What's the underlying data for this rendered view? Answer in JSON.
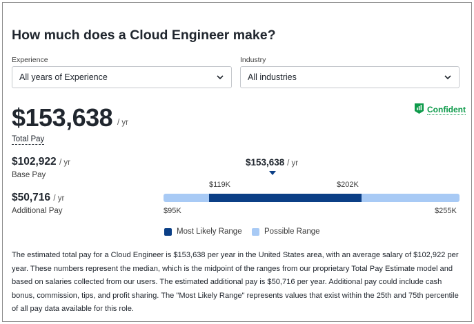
{
  "header": {
    "title": "How much does a Cloud Engineer make?"
  },
  "filters": {
    "experience_label": "Experience",
    "experience_value": "All years of Experience",
    "industry_label": "Industry",
    "industry_value": "All industries"
  },
  "total": {
    "amount": "$153,638",
    "unit": "/ yr",
    "label": "Total Pay"
  },
  "confidence": {
    "label": "Confident",
    "color": "#0d9a4a",
    "icon": "bar-chart-icon"
  },
  "base": {
    "amount": "$102,922",
    "unit": "/ yr",
    "label": "Base Pay"
  },
  "additional": {
    "amount": "$50,716",
    "unit": "/ yr",
    "label": "Additional Pay"
  },
  "range": {
    "marker_amount": "$153,638",
    "marker_unit": "/ yr",
    "likely_low": "$119K",
    "likely_high": "$202K",
    "possible_low": "$95K",
    "possible_high": "$255K",
    "likely_color": "#0b3f86",
    "possible_color": "#a8caf5"
  },
  "legend": {
    "likely": "Most Likely Range",
    "possible": "Possible Range"
  },
  "description": "The estimated total pay for a Cloud Engineer is $153,638 per year in the United States area, with an average salary of $102,922 per year. These numbers represent the median, which is the midpoint of the ranges from our proprietary Total Pay Estimate model and based on salaries collected from our users. The estimated additional pay is $50,716 per year. Additional pay could include cash bonus, commission, tips, and profit sharing. The \"Most Likely Range\" represents values that exist within the 25th and 75th percentile of all pay data available for this role."
}
